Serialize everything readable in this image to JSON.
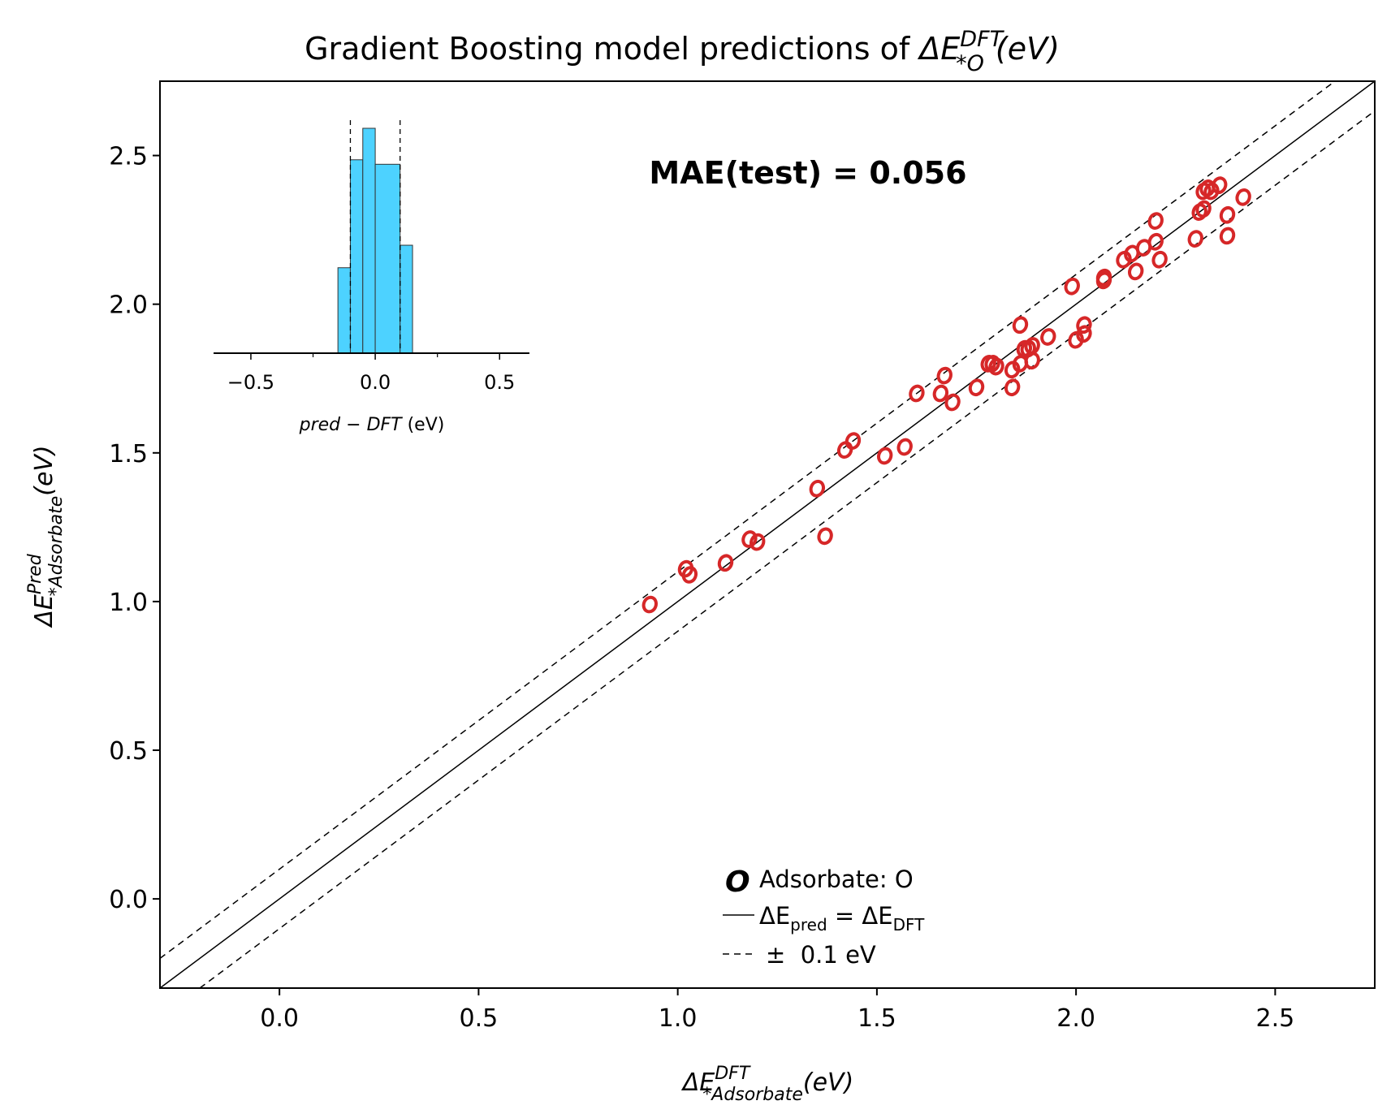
{
  "chart_data": {
    "type": "scatter",
    "title": {
      "prefix": "Gradient Boosting model predictions of ",
      "delta": "ΔE",
      "sub": "*O",
      "sup": "DFT",
      "suffix": "(eV)"
    },
    "xlabel": {
      "delta": "ΔE",
      "sub": "*Adsorbate",
      "sup": "DFT",
      "suffix": "(eV)"
    },
    "ylabel": {
      "delta": "ΔE",
      "sub": "*Adsorbate",
      "sup": "Pred",
      "suffix": "(eV)"
    },
    "xlim": [
      -0.3,
      2.75
    ],
    "ylim": [
      -0.3,
      2.75
    ],
    "xticks": [
      "0.0",
      "0.5",
      "1.0",
      "1.5",
      "2.0",
      "2.5"
    ],
    "yticks": [
      "0.0",
      "0.5",
      "1.0",
      "1.5",
      "2.0",
      "2.5"
    ],
    "annotation": "MAE(test) = 0.056",
    "colors": {
      "points": "#d62728",
      "annotation": "#00bfff",
      "histogram": "#4dd2ff"
    },
    "marker": "O",
    "reference_lines": [
      {
        "label": "ΔE_pred = ΔE_DFT",
        "offset": 0,
        "style": "solid"
      },
      {
        "label": "± 0.1 eV",
        "offset": 0.1,
        "style": "dashed"
      },
      {
        "label": "± 0.1 eV",
        "offset": -0.1,
        "style": "dashed"
      }
    ],
    "legend": {
      "placement": "lower-center",
      "marker_label": "Adsorbate: O",
      "solid": {
        "delta": "ΔE",
        "sub1": "pred",
        "eq": " = ",
        "delta2": "ΔE",
        "sub2": "DFT"
      },
      "dashed": "±  0.1 eV"
    },
    "series": [
      {
        "name": "Adsorbate: O",
        "points": [
          [
            0.93,
            0.99
          ],
          [
            1.02,
            1.11
          ],
          [
            1.03,
            1.09
          ],
          [
            1.12,
            1.13
          ],
          [
            1.18,
            1.21
          ],
          [
            1.2,
            1.2
          ],
          [
            1.35,
            1.38
          ],
          [
            1.37,
            1.22
          ],
          [
            1.42,
            1.51
          ],
          [
            1.44,
            1.54
          ],
          [
            1.52,
            1.49
          ],
          [
            1.57,
            1.52
          ],
          [
            1.6,
            1.7
          ],
          [
            1.66,
            1.7
          ],
          [
            1.67,
            1.76
          ],
          [
            1.69,
            1.67
          ],
          [
            1.75,
            1.72
          ],
          [
            1.78,
            1.8
          ],
          [
            1.79,
            1.8
          ],
          [
            1.8,
            1.79
          ],
          [
            1.84,
            1.78
          ],
          [
            1.84,
            1.72
          ],
          [
            1.86,
            1.93
          ],
          [
            1.86,
            1.8
          ],
          [
            1.87,
            1.85
          ],
          [
            1.88,
            1.85
          ],
          [
            1.89,
            1.86
          ],
          [
            1.89,
            1.81
          ],
          [
            1.93,
            1.89
          ],
          [
            1.99,
            2.06
          ],
          [
            2.0,
            1.88
          ],
          [
            2.02,
            1.9
          ],
          [
            2.02,
            1.93
          ],
          [
            2.07,
            2.08
          ],
          [
            2.07,
            2.09
          ],
          [
            2.12,
            2.15
          ],
          [
            2.14,
            2.17
          ],
          [
            2.15,
            2.11
          ],
          [
            2.17,
            2.19
          ],
          [
            2.2,
            2.21
          ],
          [
            2.2,
            2.28
          ],
          [
            2.21,
            2.15
          ],
          [
            2.3,
            2.22
          ],
          [
            2.31,
            2.31
          ],
          [
            2.32,
            2.32
          ],
          [
            2.32,
            2.38
          ],
          [
            2.33,
            2.39
          ],
          [
            2.34,
            2.38
          ],
          [
            2.36,
            2.4
          ],
          [
            2.38,
            2.3
          ],
          [
            2.38,
            2.23
          ],
          [
            2.42,
            2.36
          ]
        ]
      }
    ],
    "inset_histogram": {
      "xlabel": {
        "italic": "pred − DFT",
        "suffix": " (eV)"
      },
      "xlim": [
        -0.65,
        0.62
      ],
      "xticks": [
        "−0.5",
        "0.0",
        "0.5"
      ],
      "bins": [
        {
          "left": -0.15,
          "right": -0.1,
          "height": 0.38
        },
        {
          "left": -0.1,
          "right": -0.05,
          "height": 0.86
        },
        {
          "left": -0.05,
          "right": 0.0,
          "height": 1.0
        },
        {
          "left": 0.0,
          "right": 0.1,
          "height": 0.84
        },
        {
          "left": 0.1,
          "right": 0.15,
          "height": 0.48
        }
      ],
      "vlines": [
        -0.1,
        0.1
      ]
    }
  }
}
